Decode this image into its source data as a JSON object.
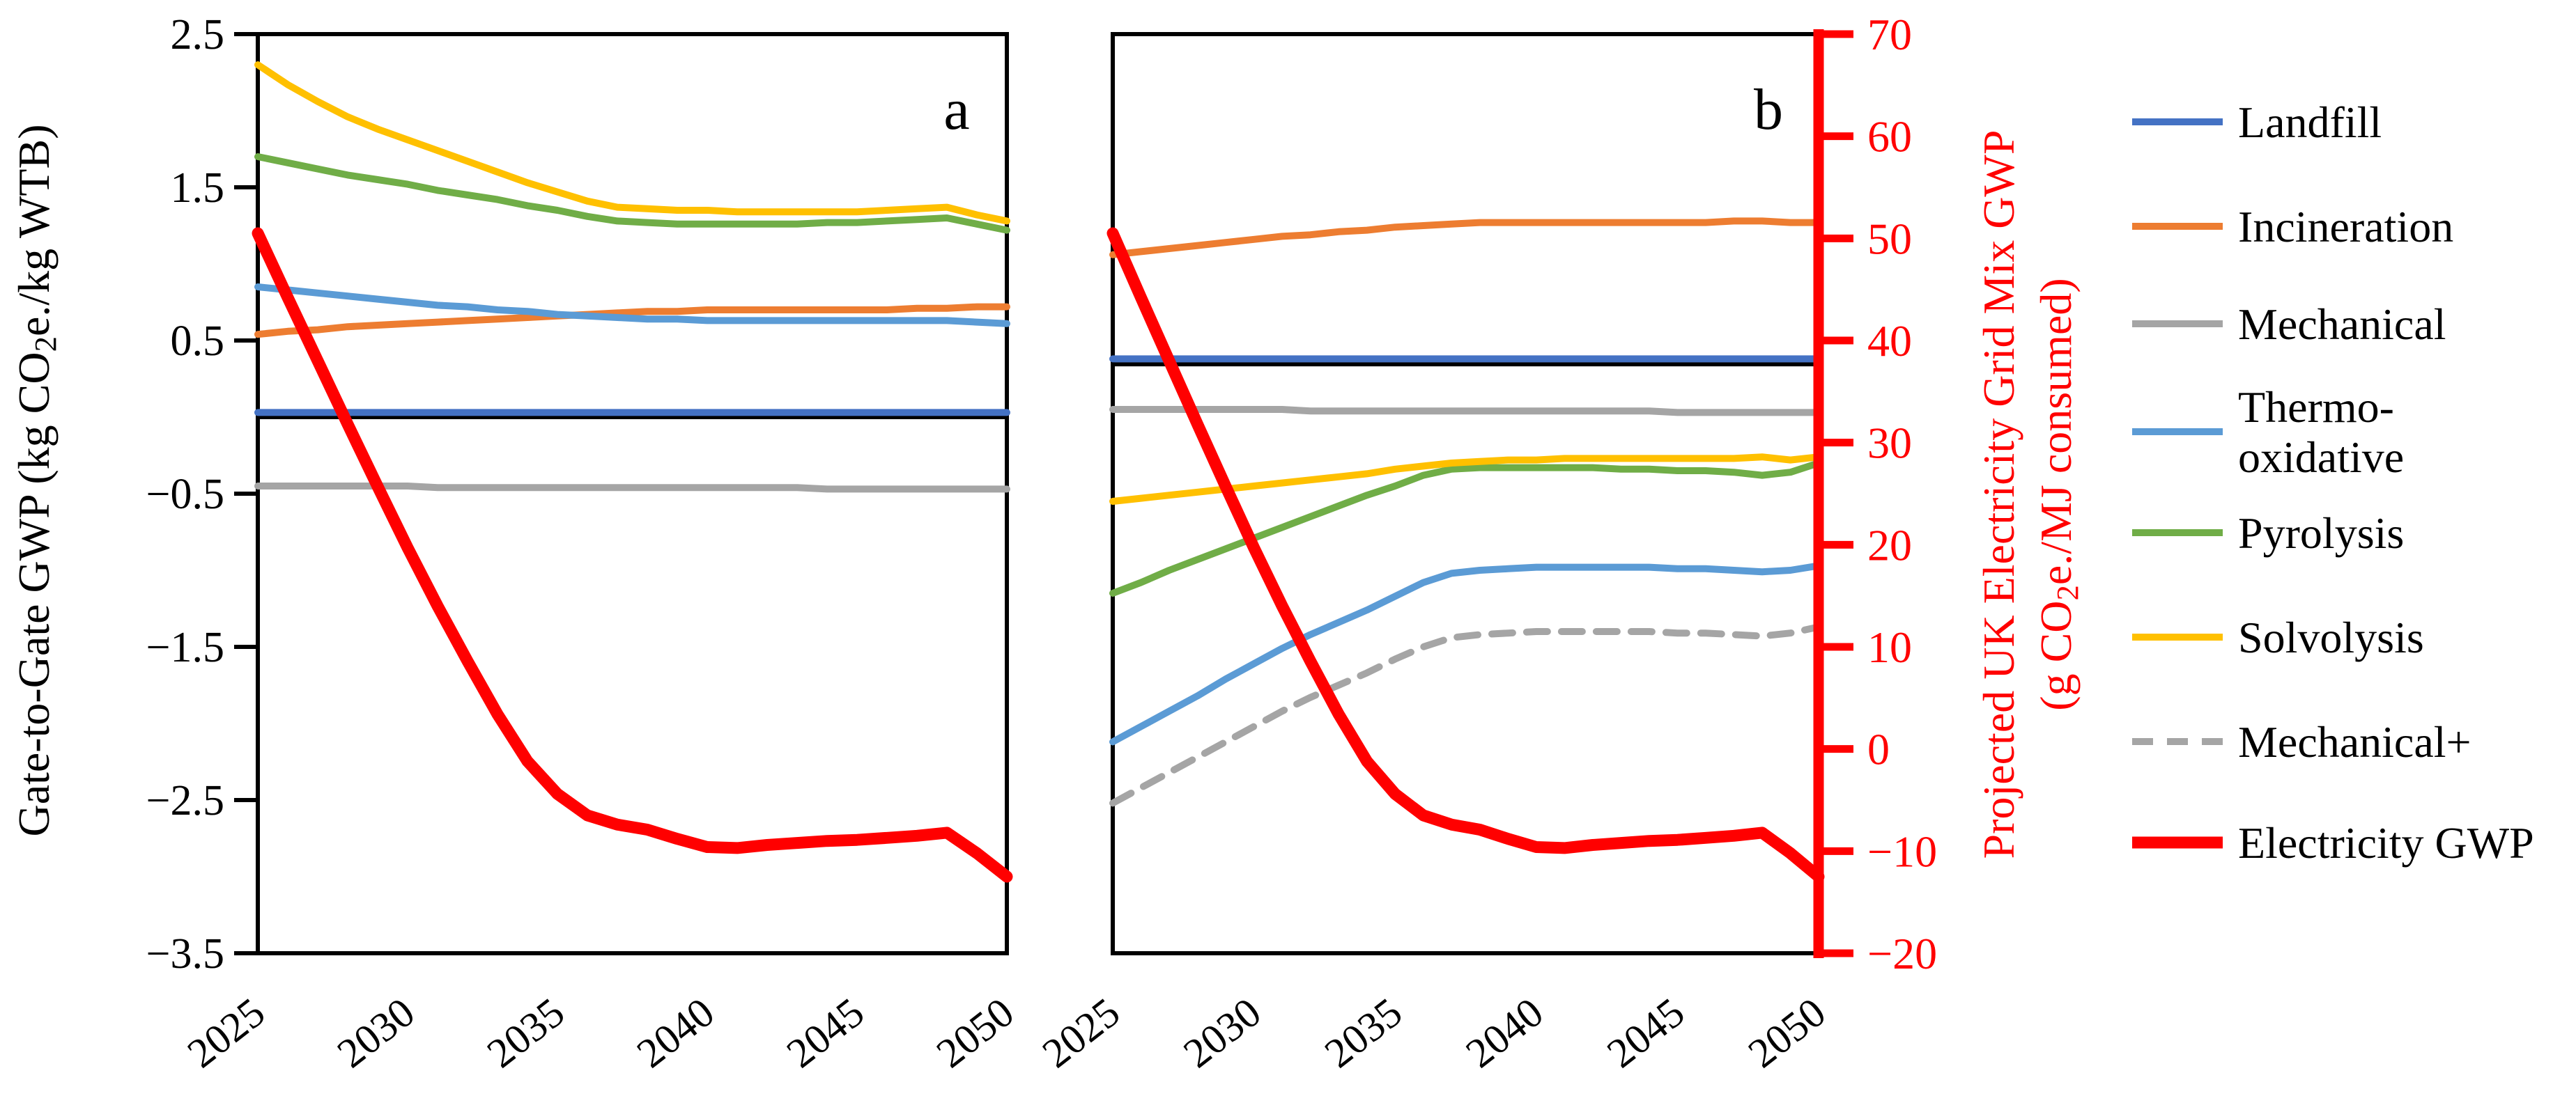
{
  "figure": {
    "panel_a_label": "a",
    "panel_b_label": "b",
    "left_axis": {
      "title_segments": [
        {
          "t": "Gate-to-Gate GWP (kg CO"
        },
        {
          "t": "2",
          "sub": true
        },
        {
          "t": "e./kg WTB)"
        }
      ],
      "min": -3.5,
      "max": 2.5,
      "tick_labels": [
        "2.5",
        "1.5",
        "0.5",
        "-0.5",
        "-1.5",
        "-2.5",
        "-3.5"
      ],
      "tick_values": [
        2.5,
        1.5,
        0.5,
        -0.5,
        -1.5,
        -2.5,
        -3.5
      ],
      "color": "#000000"
    },
    "right_axis": {
      "title_line1_segments": [
        {
          "t": "Projected UK Electricity Grid Mix GWP"
        }
      ],
      "title_line2_segments": [
        {
          "t": "(g CO"
        },
        {
          "t": "2",
          "sub": true
        },
        {
          "t": "e./MJ consumed)"
        }
      ],
      "min": -20,
      "max": 70,
      "tick_labels": [
        "70",
        "60",
        "50",
        "40",
        "30",
        "20",
        "10",
        "0",
        "-10",
        "-20"
      ],
      "tick_values": [
        70,
        60,
        50,
        40,
        30,
        20,
        10,
        0,
        -10,
        -20
      ],
      "color": "#FF0000"
    },
    "x_axis": {
      "tick_labels": [
        "2025",
        "2030",
        "2035",
        "2040",
        "2045",
        "2050"
      ],
      "tick_values": [
        2025,
        2030,
        2035,
        2040,
        2045,
        2050
      ]
    },
    "colors": {
      "landfill": "#4472C4",
      "incineration": "#ED7D31",
      "mechanical": "#A5A5A5",
      "thermo_oxidative": "#5B9BD5",
      "pyrolysis": "#70AD47",
      "solvolysis": "#FFC000",
      "mechanical_plus": "#A5A5A5",
      "electricity": "#FF0000",
      "frame": "#000000"
    },
    "legend": [
      {
        "key": "landfill",
        "lines": [
          "Landfill"
        ],
        "dash": false,
        "thick": false
      },
      {
        "key": "incineration",
        "lines": [
          "Incineration"
        ],
        "dash": false,
        "thick": false
      },
      {
        "key": "mechanical",
        "lines": [
          "Mechanical"
        ],
        "dash": false,
        "thick": false
      },
      {
        "key": "thermo_oxidative",
        "lines": [
          "Thermo-",
          "oxidative"
        ],
        "dash": false,
        "thick": false
      },
      {
        "key": "pyrolysis",
        "lines": [
          "Pyrolysis"
        ],
        "dash": false,
        "thick": false
      },
      {
        "key": "solvolysis",
        "lines": [
          "Solvolysis"
        ],
        "dash": false,
        "thick": false
      },
      {
        "key": "mechanical_plus",
        "lines": [
          "Mechanical+"
        ],
        "dash": true,
        "thick": false
      },
      {
        "key": "electricity",
        "lines": [
          "Electricity GWP"
        ],
        "dash": false,
        "thick": true
      }
    ]
  },
  "chart_data": [
    {
      "type": "line",
      "panel": "a",
      "title": "",
      "xlabel": "",
      "ylabel_left": "Gate-to-Gate GWP (kg CO2e./kg WTB)",
      "ylabel_right": "Projected UK Electricity Grid Mix GWP (g CO2e./MJ consumed)",
      "x": [
        2025,
        2026,
        2027,
        2028,
        2029,
        2030,
        2031,
        2032,
        2033,
        2034,
        2035,
        2036,
        2037,
        2038,
        2039,
        2040,
        2041,
        2042,
        2043,
        2044,
        2045,
        2046,
        2047,
        2048,
        2049,
        2050
      ],
      "xlim": [
        2025,
        2050
      ],
      "ylim_left": [
        -3.5,
        2.5
      ],
      "ylim_right": [
        -20,
        70
      ],
      "grid": false,
      "baseline_left_value": 0.0,
      "series": [
        {
          "name": "Landfill",
          "key": "landfill",
          "axis": "left",
          "values": [
            0.03,
            0.03,
            0.03,
            0.03,
            0.03,
            0.03,
            0.03,
            0.03,
            0.03,
            0.03,
            0.03,
            0.03,
            0.03,
            0.03,
            0.03,
            0.03,
            0.03,
            0.03,
            0.03,
            0.03,
            0.03,
            0.03,
            0.03,
            0.03,
            0.03,
            0.03
          ]
        },
        {
          "name": "Incineration",
          "key": "incineration",
          "axis": "left",
          "values": [
            0.54,
            0.56,
            0.57,
            0.59,
            0.6,
            0.61,
            0.62,
            0.63,
            0.64,
            0.65,
            0.66,
            0.67,
            0.68,
            0.69,
            0.69,
            0.7,
            0.7,
            0.7,
            0.7,
            0.7,
            0.7,
            0.7,
            0.71,
            0.71,
            0.72,
            0.72
          ]
        },
        {
          "name": "Mechanical",
          "key": "mechanical",
          "axis": "left",
          "values": [
            -0.45,
            -0.45,
            -0.45,
            -0.45,
            -0.45,
            -0.45,
            -0.46,
            -0.46,
            -0.46,
            -0.46,
            -0.46,
            -0.46,
            -0.46,
            -0.46,
            -0.46,
            -0.46,
            -0.46,
            -0.46,
            -0.46,
            -0.47,
            -0.47,
            -0.47,
            -0.47,
            -0.47,
            -0.47,
            -0.47
          ]
        },
        {
          "name": "Thermo-oxidative",
          "key": "thermo_oxidative",
          "axis": "left",
          "values": [
            0.85,
            0.83,
            0.81,
            0.79,
            0.77,
            0.75,
            0.73,
            0.72,
            0.7,
            0.69,
            0.67,
            0.66,
            0.65,
            0.64,
            0.64,
            0.63,
            0.63,
            0.63,
            0.63,
            0.63,
            0.63,
            0.63,
            0.63,
            0.63,
            0.62,
            0.61
          ]
        },
        {
          "name": "Pyrolysis",
          "key": "pyrolysis",
          "axis": "left",
          "values": [
            1.7,
            1.66,
            1.62,
            1.58,
            1.55,
            1.52,
            1.48,
            1.45,
            1.42,
            1.38,
            1.35,
            1.31,
            1.28,
            1.27,
            1.26,
            1.26,
            1.26,
            1.26,
            1.26,
            1.27,
            1.27,
            1.28,
            1.29,
            1.3,
            1.26,
            1.22
          ]
        },
        {
          "name": "Solvolysis",
          "key": "solvolysis",
          "axis": "left",
          "values": [
            2.3,
            2.17,
            2.06,
            1.96,
            1.88,
            1.81,
            1.74,
            1.67,
            1.6,
            1.53,
            1.47,
            1.41,
            1.37,
            1.36,
            1.35,
            1.35,
            1.34,
            1.34,
            1.34,
            1.34,
            1.34,
            1.35,
            1.36,
            1.37,
            1.32,
            1.28
          ]
        },
        {
          "name": "Electricity GWP",
          "key": "electricity",
          "axis": "right",
          "values": [
            50.5,
            44.2,
            38.0,
            31.8,
            25.7,
            19.7,
            14.0,
            8.6,
            3.4,
            -1.2,
            -4.4,
            -6.5,
            -7.4,
            -7.9,
            -8.8,
            -9.6,
            -9.7,
            -9.4,
            -9.2,
            -9.0,
            -8.9,
            -8.7,
            -8.5,
            -8.2,
            -10.2,
            -12.5
          ]
        }
      ]
    },
    {
      "type": "line",
      "panel": "b",
      "title": "",
      "xlabel": "",
      "ylabel_left": "Gate-to-Gate GWP (kg CO2e./kg WTB)",
      "ylabel_right": "Projected UK Electricity Grid Mix GWP (g CO2e./MJ consumed)",
      "x": [
        2025,
        2026,
        2027,
        2028,
        2029,
        2030,
        2031,
        2032,
        2033,
        2034,
        2035,
        2036,
        2037,
        2038,
        2039,
        2040,
        2041,
        2042,
        2043,
        2044,
        2045,
        2046,
        2047,
        2048,
        2049,
        2050
      ],
      "xlim": [
        2025,
        2050
      ],
      "ylim_left": [
        -3.5,
        2.5
      ],
      "ylim_right": [
        -20,
        70
      ],
      "grid": false,
      "baseline_left_value": 0.345,
      "series": [
        {
          "name": "Landfill",
          "key": "landfill",
          "axis": "left",
          "values": [
            0.38,
            0.38,
            0.38,
            0.38,
            0.38,
            0.38,
            0.38,
            0.38,
            0.38,
            0.38,
            0.38,
            0.38,
            0.38,
            0.38,
            0.38,
            0.38,
            0.38,
            0.38,
            0.38,
            0.38,
            0.38,
            0.38,
            0.38,
            0.38,
            0.38,
            0.38
          ]
        },
        {
          "name": "Incineration",
          "key": "incineration",
          "axis": "left",
          "values": [
            1.06,
            1.08,
            1.1,
            1.12,
            1.14,
            1.16,
            1.18,
            1.19,
            1.21,
            1.22,
            1.24,
            1.25,
            1.26,
            1.27,
            1.27,
            1.27,
            1.27,
            1.27,
            1.27,
            1.27,
            1.27,
            1.27,
            1.28,
            1.28,
            1.27,
            1.27
          ]
        },
        {
          "name": "Mechanical",
          "key": "mechanical",
          "axis": "left",
          "values": [
            0.05,
            0.05,
            0.05,
            0.05,
            0.05,
            0.05,
            0.05,
            0.04,
            0.04,
            0.04,
            0.04,
            0.04,
            0.04,
            0.04,
            0.04,
            0.04,
            0.04,
            0.04,
            0.04,
            0.04,
            0.03,
            0.03,
            0.03,
            0.03,
            0.03,
            0.03
          ]
        },
        {
          "name": "Thermo-oxidative",
          "key": "thermo_oxidative",
          "axis": "left",
          "values": [
            -2.12,
            -2.02,
            -1.92,
            -1.82,
            -1.71,
            -1.61,
            -1.51,
            -1.42,
            -1.34,
            -1.26,
            -1.17,
            -1.08,
            -1.02,
            -1.0,
            -0.99,
            -0.98,
            -0.98,
            -0.98,
            -0.98,
            -0.98,
            -0.99,
            -0.99,
            -1.0,
            -1.01,
            -1.0,
            -0.97
          ]
        },
        {
          "name": "Pyrolysis",
          "key": "pyrolysis",
          "axis": "left",
          "values": [
            -1.15,
            -1.08,
            -1.0,
            -0.93,
            -0.86,
            -0.79,
            -0.72,
            -0.65,
            -0.58,
            -0.51,
            -0.45,
            -0.38,
            -0.34,
            -0.33,
            -0.33,
            -0.33,
            -0.33,
            -0.33,
            -0.34,
            -0.34,
            -0.35,
            -0.35,
            -0.36,
            -0.38,
            -0.36,
            -0.3
          ]
        },
        {
          "name": "Solvolysis",
          "key": "solvolysis",
          "axis": "left",
          "values": [
            -0.55,
            -0.53,
            -0.51,
            -0.49,
            -0.47,
            -0.45,
            -0.43,
            -0.41,
            -0.39,
            -0.37,
            -0.34,
            -0.32,
            -0.3,
            -0.29,
            -0.28,
            -0.28,
            -0.27,
            -0.27,
            -0.27,
            -0.27,
            -0.27,
            -0.27,
            -0.27,
            -0.26,
            -0.28,
            -0.26
          ]
        },
        {
          "name": "Mechanical+",
          "key": "mechanical_plus",
          "axis": "left",
          "dash": true,
          "values": [
            -2.52,
            -2.42,
            -2.32,
            -2.22,
            -2.12,
            -2.02,
            -1.92,
            -1.83,
            -1.75,
            -1.67,
            -1.58,
            -1.5,
            -1.44,
            -1.42,
            -1.41,
            -1.4,
            -1.4,
            -1.4,
            -1.4,
            -1.4,
            -1.41,
            -1.41,
            -1.42,
            -1.43,
            -1.41,
            -1.37
          ]
        },
        {
          "name": "Electricity GWP",
          "key": "electricity",
          "axis": "right",
          "values": [
            50.5,
            44.2,
            38.0,
            31.8,
            25.7,
            19.7,
            14.0,
            8.6,
            3.4,
            -1.2,
            -4.4,
            -6.5,
            -7.4,
            -7.9,
            -8.8,
            -9.6,
            -9.7,
            -9.4,
            -9.2,
            -9.0,
            -8.9,
            -8.7,
            -8.5,
            -8.2,
            -10.2,
            -12.5
          ]
        }
      ]
    }
  ]
}
